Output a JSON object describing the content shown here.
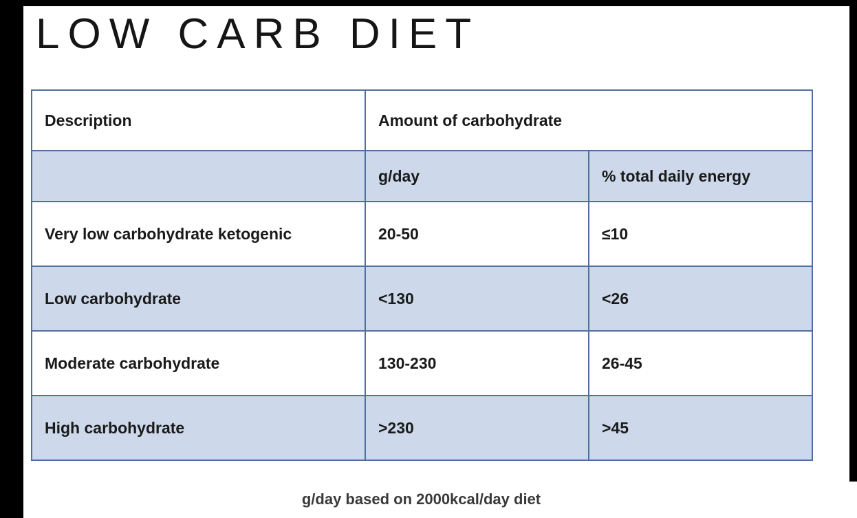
{
  "slide": {
    "title": "LOW CARB DIET",
    "footnote": "g/day based on 2000kcal/day diet"
  },
  "table": {
    "header": {
      "description": "Description",
      "amount": "Amount of carbohydrate",
      "col_gday": "g/day",
      "col_pct": "% total daily energy"
    },
    "rows": [
      {
        "description": "Very low carbohydrate ketogenic",
        "gday": "20-50",
        "pct": "≤10"
      },
      {
        "description": "Low carbohydrate",
        "gday": "<130",
        "pct": "<26"
      },
      {
        "description": "Moderate carbohydrate",
        "gday": "130-230",
        "pct": "26-45"
      },
      {
        "description": "High carbohydrate",
        "gday": ">230",
        "pct": ">45"
      }
    ]
  },
  "chart_data": {
    "type": "table",
    "title": "LOW CARB DIET",
    "columns": [
      "Description",
      "g/day",
      "% total daily energy"
    ],
    "rows": [
      [
        "Very low carbohydrate ketogenic",
        "20-50",
        "≤10"
      ],
      [
        "Low carbohydrate",
        "<130",
        "<26"
      ],
      [
        "Moderate carbohydrate",
        "130-230",
        "26-45"
      ],
      [
        "High carbohydrate",
        ">230",
        ">45"
      ]
    ],
    "note": "g/day based on 2000kcal/day diet"
  },
  "colors": {
    "table_border": "#4f6f9f",
    "row_alt_fill": "#cdd9ea",
    "text": "#1a1a1a",
    "frame": "#000000"
  }
}
